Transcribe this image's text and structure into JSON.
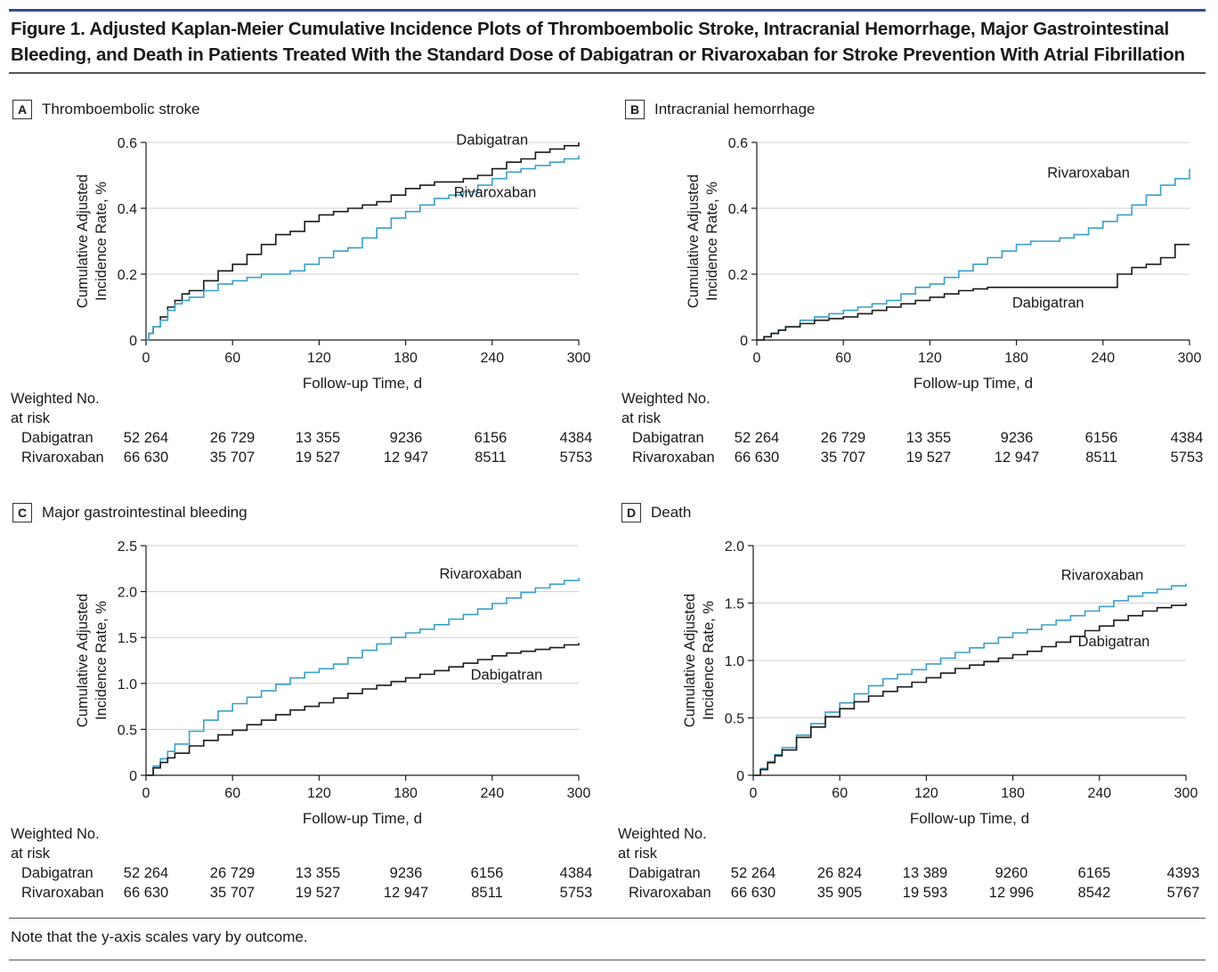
{
  "figure": {
    "title": "Figure 1. Adjusted Kaplan-Meier Cumulative Incidence Plots of Thromboembolic Stroke, Intracranial Hemorrhage, Major Gastrointestinal Bleeding, and Death in Patients Treated With the Standard Dose of Dabigatran or Rivaroxaban for Stroke Prevention With Atrial Fibrillation",
    "note": "Note that the y-axis scales vary by outcome.",
    "accent_color": "#2f4f8f"
  },
  "colors": {
    "dabigatran": "#1a1a1a",
    "rivaroxaban": "#3aa0c8",
    "grid": "#d0d0d0"
  },
  "panels": [
    {
      "letter": "A",
      "title": "Thromboembolic stroke",
      "risk_heading_1": "Weighted No.",
      "risk_heading_2": "at risk",
      "risk_rows": [
        {
          "label": "Dabigatran",
          "values": [
            "52 264",
            "26 729",
            "13 355",
            "9236",
            "6156",
            "4384"
          ]
        },
        {
          "label": "Rivaroxaban",
          "values": [
            "66 630",
            "35 707",
            "19 527",
            "12 947",
            "8511",
            "5753"
          ]
        }
      ]
    },
    {
      "letter": "B",
      "title": "Intracranial hemorrhage",
      "risk_heading_1": "Weighted No.",
      "risk_heading_2": "at risk",
      "risk_rows": [
        {
          "label": "Dabigatran",
          "values": [
            "52 264",
            "26 729",
            "13 355",
            "9236",
            "6156",
            "4384"
          ]
        },
        {
          "label": "Rivaroxaban",
          "values": [
            "66 630",
            "35 707",
            "19 527",
            "12 947",
            "8511",
            "5753"
          ]
        }
      ]
    },
    {
      "letter": "C",
      "title": "Major gastrointestinal bleeding",
      "risk_heading_1": "Weighted No.",
      "risk_heading_2": "at risk",
      "risk_rows": [
        {
          "label": "Dabigatran",
          "values": [
            "52 264",
            "26 729",
            "13 355",
            "9236",
            "6156",
            "4384"
          ]
        },
        {
          "label": "Rivaroxaban",
          "values": [
            "66 630",
            "35 707",
            "19 527",
            "12 947",
            "8511",
            "5753"
          ]
        }
      ]
    },
    {
      "letter": "D",
      "title": "Death",
      "risk_heading_1": "Weighted No.",
      "risk_heading_2": "at risk",
      "risk_rows": [
        {
          "label": "Dabigatran",
          "values": [
            "52 264",
            "26 824",
            "13 389",
            "9260",
            "6165",
            "4393"
          ]
        },
        {
          "label": "Rivaroxaban",
          "values": [
            "66 630",
            "35 905",
            "19 593",
            "12 996",
            "8542",
            "5767"
          ]
        }
      ]
    }
  ],
  "chart_data": [
    {
      "type": "line",
      "step": true,
      "title": "Thromboembolic stroke",
      "xlabel": "Follow-up Time, d",
      "ylabel": "Cumulative Adjusted Incidence Rate, %",
      "xlim": [
        0,
        300
      ],
      "ylim": [
        0,
        0.6
      ],
      "xticks": [
        0,
        60,
        120,
        180,
        240,
        300
      ],
      "yticks": [
        0,
        0.2,
        0.4,
        0.6
      ],
      "ytick_labels": [
        "0",
        "0.2",
        "0.4",
        "0.6"
      ],
      "grid": true,
      "series": [
        {
          "name": "Dabigatran",
          "color": "#1a1a1a",
          "label_pos": [
            240,
            0.61
          ],
          "x": [
            0,
            2,
            5,
            10,
            15,
            20,
            25,
            30,
            40,
            50,
            60,
            70,
            80,
            90,
            100,
            110,
            120,
            130,
            140,
            150,
            160,
            170,
            180,
            190,
            200,
            210,
            220,
            230,
            240,
            250,
            260,
            270,
            280,
            290,
            300
          ],
          "y": [
            0,
            0.02,
            0.04,
            0.07,
            0.1,
            0.12,
            0.14,
            0.15,
            0.18,
            0.21,
            0.23,
            0.26,
            0.29,
            0.32,
            0.33,
            0.36,
            0.38,
            0.39,
            0.4,
            0.41,
            0.42,
            0.44,
            0.46,
            0.47,
            0.48,
            0.48,
            0.49,
            0.5,
            0.52,
            0.54,
            0.55,
            0.57,
            0.58,
            0.59,
            0.6
          ]
        },
        {
          "name": "Rivaroxaban",
          "color": "#3aa0c8",
          "label_pos": [
            242,
            0.45
          ],
          "x": [
            0,
            2,
            5,
            10,
            15,
            20,
            25,
            30,
            40,
            50,
            60,
            70,
            80,
            90,
            100,
            110,
            120,
            130,
            140,
            150,
            160,
            170,
            180,
            190,
            200,
            210,
            220,
            230,
            240,
            250,
            260,
            270,
            280,
            290,
            300
          ],
          "y": [
            0,
            0.02,
            0.04,
            0.06,
            0.09,
            0.11,
            0.12,
            0.13,
            0.15,
            0.17,
            0.18,
            0.19,
            0.2,
            0.2,
            0.21,
            0.23,
            0.25,
            0.27,
            0.28,
            0.31,
            0.34,
            0.37,
            0.39,
            0.41,
            0.43,
            0.44,
            0.45,
            0.47,
            0.49,
            0.51,
            0.52,
            0.53,
            0.54,
            0.55,
            0.56
          ]
        }
      ]
    },
    {
      "type": "line",
      "step": true,
      "title": "Intracranial hemorrhage",
      "xlabel": "Follow-up Time, d",
      "ylabel": "Cumulative Adjusted Incidence Rate, %",
      "xlim": [
        0,
        300
      ],
      "ylim": [
        0,
        0.6
      ],
      "xticks": [
        0,
        60,
        120,
        180,
        240,
        300
      ],
      "yticks": [
        0,
        0.2,
        0.4,
        0.6
      ],
      "ytick_labels": [
        "0",
        "0.2",
        "0.4",
        "0.6"
      ],
      "grid": true,
      "series": [
        {
          "name": "Rivaroxaban",
          "color": "#3aa0c8",
          "label_pos": [
            230,
            0.51
          ],
          "x": [
            0,
            5,
            10,
            15,
            20,
            30,
            40,
            50,
            60,
            70,
            80,
            90,
            100,
            110,
            120,
            130,
            140,
            150,
            160,
            170,
            180,
            190,
            200,
            210,
            220,
            230,
            240,
            250,
            260,
            270,
            280,
            290,
            300
          ],
          "y": [
            0,
            0.01,
            0.02,
            0.03,
            0.04,
            0.06,
            0.07,
            0.08,
            0.09,
            0.1,
            0.11,
            0.12,
            0.14,
            0.16,
            0.17,
            0.19,
            0.21,
            0.23,
            0.25,
            0.27,
            0.29,
            0.3,
            0.3,
            0.31,
            0.32,
            0.34,
            0.36,
            0.38,
            0.41,
            0.44,
            0.47,
            0.49,
            0.52
          ]
        },
        {
          "name": "Dabigatran",
          "color": "#1a1a1a",
          "label_pos": [
            202,
            0.115
          ],
          "x": [
            0,
            5,
            10,
            15,
            20,
            30,
            40,
            50,
            60,
            70,
            80,
            90,
            100,
            110,
            120,
            130,
            140,
            150,
            160,
            170,
            180,
            190,
            200,
            210,
            220,
            230,
            240,
            245,
            250,
            260,
            270,
            280,
            290,
            300
          ],
          "y": [
            0,
            0.01,
            0.02,
            0.03,
            0.04,
            0.05,
            0.06,
            0.065,
            0.07,
            0.08,
            0.09,
            0.1,
            0.11,
            0.12,
            0.13,
            0.14,
            0.15,
            0.155,
            0.16,
            0.16,
            0.16,
            0.16,
            0.16,
            0.16,
            0.16,
            0.16,
            0.16,
            0.16,
            0.2,
            0.22,
            0.23,
            0.25,
            0.29,
            0.29
          ]
        }
      ]
    },
    {
      "type": "line",
      "step": true,
      "title": "Major gastrointestinal bleeding",
      "xlabel": "Follow-up Time, d",
      "ylabel": "Cumulative Adjusted Incidence Rate, %",
      "xlim": [
        0,
        300
      ],
      "ylim": [
        0,
        2.5
      ],
      "xticks": [
        0,
        60,
        120,
        180,
        240,
        300
      ],
      "yticks": [
        0,
        0.5,
        1.0,
        1.5,
        2.0,
        2.5
      ],
      "ytick_labels": [
        "0",
        "0.5",
        "1.0",
        "1.5",
        "2.0",
        "2.5"
      ],
      "grid": true,
      "series": [
        {
          "name": "Rivaroxaban",
          "color": "#3aa0c8",
          "label_pos": [
            232,
            2.2
          ],
          "x": [
            0,
            5,
            10,
            15,
            20,
            30,
            40,
            50,
            60,
            70,
            80,
            90,
            100,
            110,
            120,
            130,
            140,
            150,
            160,
            170,
            180,
            190,
            200,
            210,
            220,
            230,
            240,
            250,
            260,
            270,
            280,
            290,
            300
          ],
          "y": [
            0,
            0.1,
            0.18,
            0.26,
            0.34,
            0.48,
            0.6,
            0.7,
            0.78,
            0.85,
            0.92,
            0.99,
            1.06,
            1.12,
            1.16,
            1.21,
            1.28,
            1.36,
            1.43,
            1.5,
            1.55,
            1.59,
            1.64,
            1.7,
            1.75,
            1.81,
            1.87,
            1.93,
            1.99,
            2.04,
            2.08,
            2.12,
            2.15
          ]
        },
        {
          "name": "Dabigatran",
          "color": "#1a1a1a",
          "label_pos": [
            250,
            1.1
          ],
          "x": [
            0,
            5,
            10,
            15,
            20,
            30,
            40,
            50,
            60,
            70,
            80,
            90,
            100,
            110,
            120,
            130,
            140,
            150,
            160,
            170,
            180,
            190,
            200,
            210,
            220,
            230,
            240,
            250,
            260,
            270,
            280,
            290,
            300
          ],
          "y": [
            0,
            0.08,
            0.14,
            0.19,
            0.24,
            0.32,
            0.38,
            0.44,
            0.49,
            0.55,
            0.6,
            0.66,
            0.71,
            0.75,
            0.79,
            0.84,
            0.89,
            0.94,
            0.98,
            1.02,
            1.06,
            1.1,
            1.14,
            1.18,
            1.22,
            1.26,
            1.3,
            1.33,
            1.35,
            1.37,
            1.39,
            1.42,
            1.44
          ]
        }
      ]
    },
    {
      "type": "line",
      "step": true,
      "title": "Death",
      "xlabel": "Follow-up Time, d",
      "ylabel": "Cumulative Adjusted Incidence Rate, %",
      "xlim": [
        0,
        300
      ],
      "ylim": [
        0,
        2.0
      ],
      "xticks": [
        0,
        60,
        120,
        180,
        240,
        300
      ],
      "yticks": [
        0,
        0.5,
        1.0,
        1.5,
        2.0
      ],
      "ytick_labels": [
        "0",
        "0.5",
        "1.0",
        "1.5",
        "2.0"
      ],
      "grid": true,
      "series": [
        {
          "name": "Rivaroxaban",
          "color": "#3aa0c8",
          "label_pos": [
            242,
            1.75
          ],
          "x": [
            0,
            5,
            10,
            15,
            20,
            30,
            40,
            50,
            60,
            70,
            80,
            90,
            100,
            110,
            120,
            130,
            140,
            150,
            160,
            170,
            180,
            190,
            200,
            210,
            220,
            230,
            240,
            250,
            260,
            270,
            280,
            290,
            300
          ],
          "y": [
            0,
            0.06,
            0.12,
            0.18,
            0.24,
            0.35,
            0.45,
            0.55,
            0.63,
            0.71,
            0.78,
            0.84,
            0.88,
            0.92,
            0.97,
            1.02,
            1.07,
            1.11,
            1.15,
            1.2,
            1.24,
            1.27,
            1.31,
            1.35,
            1.39,
            1.43,
            1.47,
            1.52,
            1.56,
            1.59,
            1.62,
            1.65,
            1.67
          ]
        },
        {
          "name": "Dabigatran",
          "color": "#1a1a1a",
          "label_pos": [
            250,
            1.17
          ],
          "x": [
            0,
            5,
            10,
            15,
            20,
            30,
            40,
            50,
            60,
            70,
            80,
            90,
            100,
            110,
            120,
            130,
            140,
            150,
            160,
            170,
            180,
            190,
            200,
            210,
            220,
            230,
            240,
            250,
            260,
            270,
            280,
            290,
            300
          ],
          "y": [
            0,
            0.05,
            0.11,
            0.17,
            0.22,
            0.33,
            0.42,
            0.51,
            0.58,
            0.64,
            0.69,
            0.73,
            0.77,
            0.81,
            0.85,
            0.89,
            0.93,
            0.96,
            0.99,
            1.02,
            1.05,
            1.08,
            1.12,
            1.16,
            1.21,
            1.26,
            1.3,
            1.35,
            1.39,
            1.43,
            1.46,
            1.48,
            1.5
          ]
        }
      ]
    }
  ]
}
